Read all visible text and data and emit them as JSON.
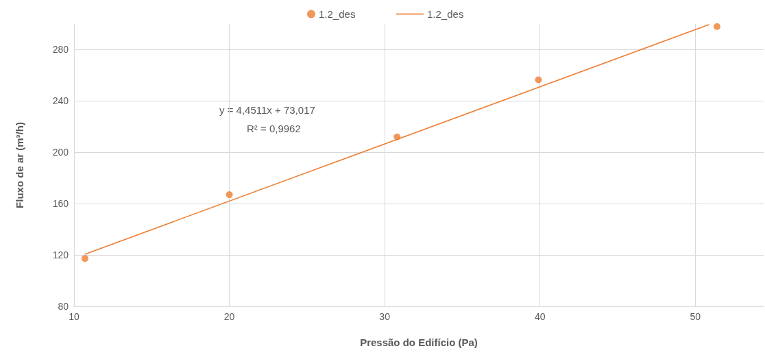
{
  "chart_data": {
    "type": "scatter",
    "xlabel": "Pressão do Edifício (Pa)",
    "ylabel": "Fluxo de ar (m³/h)",
    "xlim": [
      10,
      54.4
    ],
    "xticks": [
      10,
      20,
      30,
      40,
      50
    ],
    "ylim": [
      80,
      300
    ],
    "yticks": [
      80,
      120,
      160,
      200,
      240,
      280
    ],
    "grid": true,
    "legend": "top",
    "marker": "circle",
    "annotations": [
      "y = 4,4511x + 73,017",
      "R² = 0,9962"
    ],
    "series": [
      {
        "name": "1.2_des",
        "color": "#ed7d31",
        "x": [
          10.7,
          20.0,
          30.8,
          39.9,
          51.4
        ],
        "values": [
          117.3,
          167,
          212,
          256.5,
          298
        ]
      },
      {
        "name": "1.2_des",
        "type": "line",
        "color": "#ed7d31",
        "marker": "none",
        "line_style": "solid",
        "x": [
          10.7,
          50.9
        ],
        "values": [
          120.6,
          299.6
        ]
      }
    ]
  }
}
